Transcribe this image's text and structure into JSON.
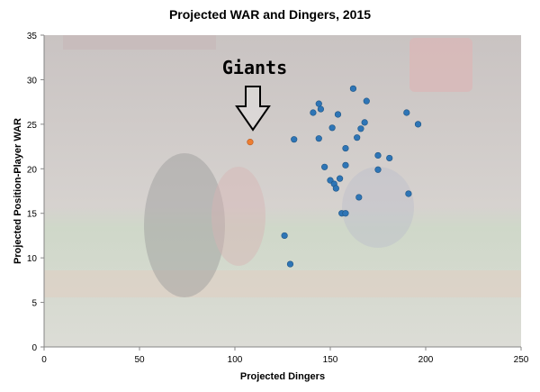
{
  "chart_data": {
    "type": "scatter",
    "title": "Projected WAR and Dingers, 2015",
    "xlabel": "Projected Dingers",
    "ylabel": "Projected Position-Player WAR",
    "xlim": [
      0,
      250
    ],
    "ylim": [
      0,
      35
    ],
    "xticks": [
      0,
      50,
      100,
      150,
      200,
      250
    ],
    "yticks": [
      0,
      5,
      10,
      15,
      20,
      25,
      30,
      35
    ],
    "grid": false,
    "annotation": {
      "text": "Giants",
      "x": 108,
      "y": 23
    },
    "colors": {
      "point": "#2E75B6",
      "highlight": "#ED7D31",
      "text": "#000000"
    },
    "points": [
      {
        "x": 108,
        "y": 23,
        "highlight": true
      },
      {
        "x": 126,
        "y": 12.5
      },
      {
        "x": 129,
        "y": 9.3
      },
      {
        "x": 131,
        "y": 23.3
      },
      {
        "x": 141,
        "y": 26.3
      },
      {
        "x": 144,
        "y": 27.3
      },
      {
        "x": 145,
        "y": 26.7
      },
      {
        "x": 144,
        "y": 23.4
      },
      {
        "x": 147,
        "y": 20.2
      },
      {
        "x": 150,
        "y": 18.7
      },
      {
        "x": 151,
        "y": 24.6
      },
      {
        "x": 152,
        "y": 18.3
      },
      {
        "x": 153,
        "y": 17.8
      },
      {
        "x": 154,
        "y": 26.1
      },
      {
        "x": 155,
        "y": 18.9
      },
      {
        "x": 156,
        "y": 15.0
      },
      {
        "x": 158,
        "y": 15.0
      },
      {
        "x": 158,
        "y": 20.4
      },
      {
        "x": 158,
        "y": 22.3
      },
      {
        "x": 162,
        "y": 29.0
      },
      {
        "x": 164,
        "y": 23.5
      },
      {
        "x": 165,
        "y": 16.8
      },
      {
        "x": 166,
        "y": 24.5
      },
      {
        "x": 168,
        "y": 25.2
      },
      {
        "x": 169,
        "y": 27.6
      },
      {
        "x": 175,
        "y": 21.5
      },
      {
        "x": 175,
        "y": 19.9
      },
      {
        "x": 181,
        "y": 21.2
      },
      {
        "x": 190,
        "y": 26.3
      },
      {
        "x": 191,
        "y": 17.2
      },
      {
        "x": 196,
        "y": 25.0
      }
    ]
  }
}
